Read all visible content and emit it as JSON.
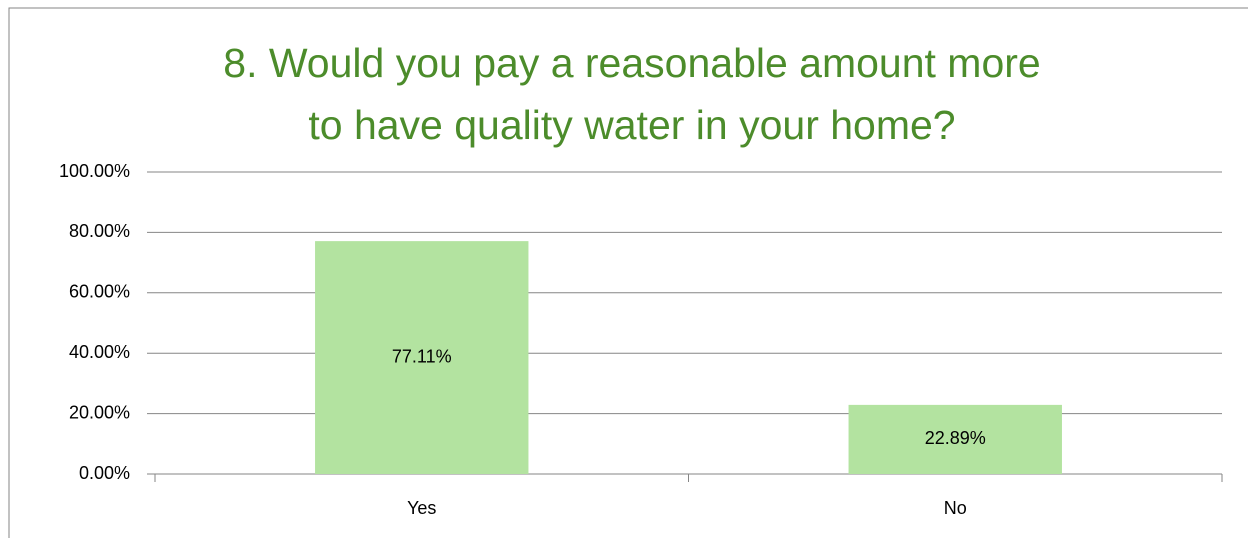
{
  "chart_data": {
    "type": "bar",
    "title": [
      "8. Would you pay a reasonable amount more",
      "to have quality water in your home?"
    ],
    "categories": [
      "Yes",
      "No"
    ],
    "values": [
      77.11,
      22.89
    ],
    "value_labels": [
      "77.11%",
      "22.89%"
    ],
    "color": "#b3e3a0",
    "ylim": [
      0,
      100
    ],
    "yticks": [
      {
        "value": 0,
        "label": "0.00%"
      },
      {
        "value": 20,
        "label": "20.00%"
      },
      {
        "value": 40,
        "label": "40.00%"
      },
      {
        "value": 60,
        "label": "60.00%"
      },
      {
        "value": 80,
        "label": "80.00%"
      },
      {
        "value": 100,
        "label": "100.00%"
      }
    ],
    "grid": true
  }
}
